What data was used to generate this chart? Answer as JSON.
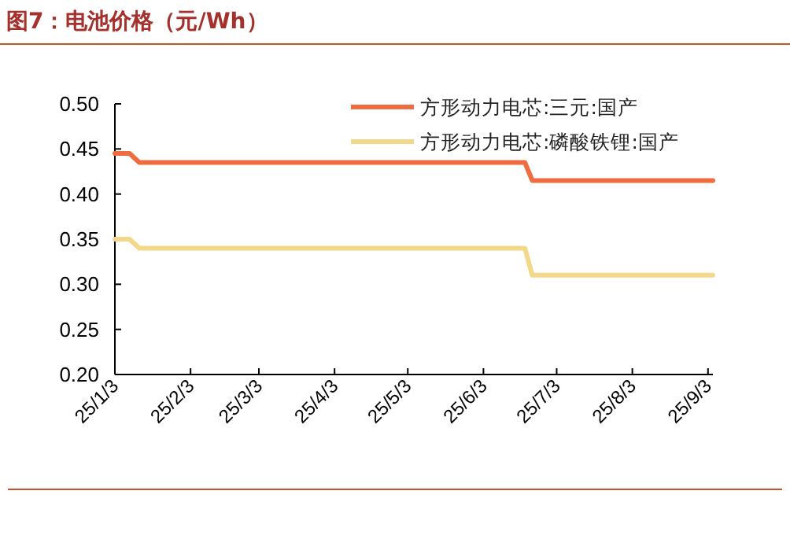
{
  "chart_data": {
    "type": "line",
    "title": "图7：电池价格（元/Wh）",
    "x": [
      "--01-03",
      "--01-09",
      "--01-13",
      "--06-20",
      "--06-23",
      "--09-05"
    ],
    "series": [
      {
        "name": "方形动力电芯:三元:国产",
        "color": "#ee6c3f",
        "values": [
          0.445,
          0.445,
          0.435,
          0.435,
          0.415,
          0.415
        ]
      },
      {
        "name": "方形动力电芯:磷酸铁锂:国产",
        "color": "#f3d88a",
        "values": [
          0.35,
          0.35,
          0.34,
          0.34,
          0.31,
          0.31
        ]
      }
    ],
    "xlim": [
      "--01-03",
      "--09-05"
    ],
    "xticks": [
      {
        "value": "--01-03",
        "label": "25/1/3"
      },
      {
        "value": "--02-03",
        "label": "25/2/3"
      },
      {
        "value": "--03-03",
        "label": "25/3/3"
      },
      {
        "value": "--04-03",
        "label": "25/4/3"
      },
      {
        "value": "--05-03",
        "label": "25/5/3"
      },
      {
        "value": "--06-03",
        "label": "25/6/3"
      },
      {
        "value": "--07-03",
        "label": "25/7/3"
      },
      {
        "value": "--08-03",
        "label": "25/8/3"
      },
      {
        "value": "--09-03",
        "label": "25/9/3"
      }
    ],
    "ylim": [
      0.2,
      0.5
    ],
    "yticks": [
      {
        "value": 0.2,
        "label": "0.20"
      },
      {
        "value": 0.25,
        "label": "0.25"
      },
      {
        "value": 0.3,
        "label": "0.30"
      },
      {
        "value": 0.35,
        "label": "0.35"
      },
      {
        "value": 0.4,
        "label": "0.40"
      },
      {
        "value": 0.45,
        "label": "0.45"
      },
      {
        "value": 0.5,
        "label": "0.50"
      }
    ],
    "grid": false,
    "legend": "top right",
    "marker": "none",
    "line_style": "solid"
  }
}
